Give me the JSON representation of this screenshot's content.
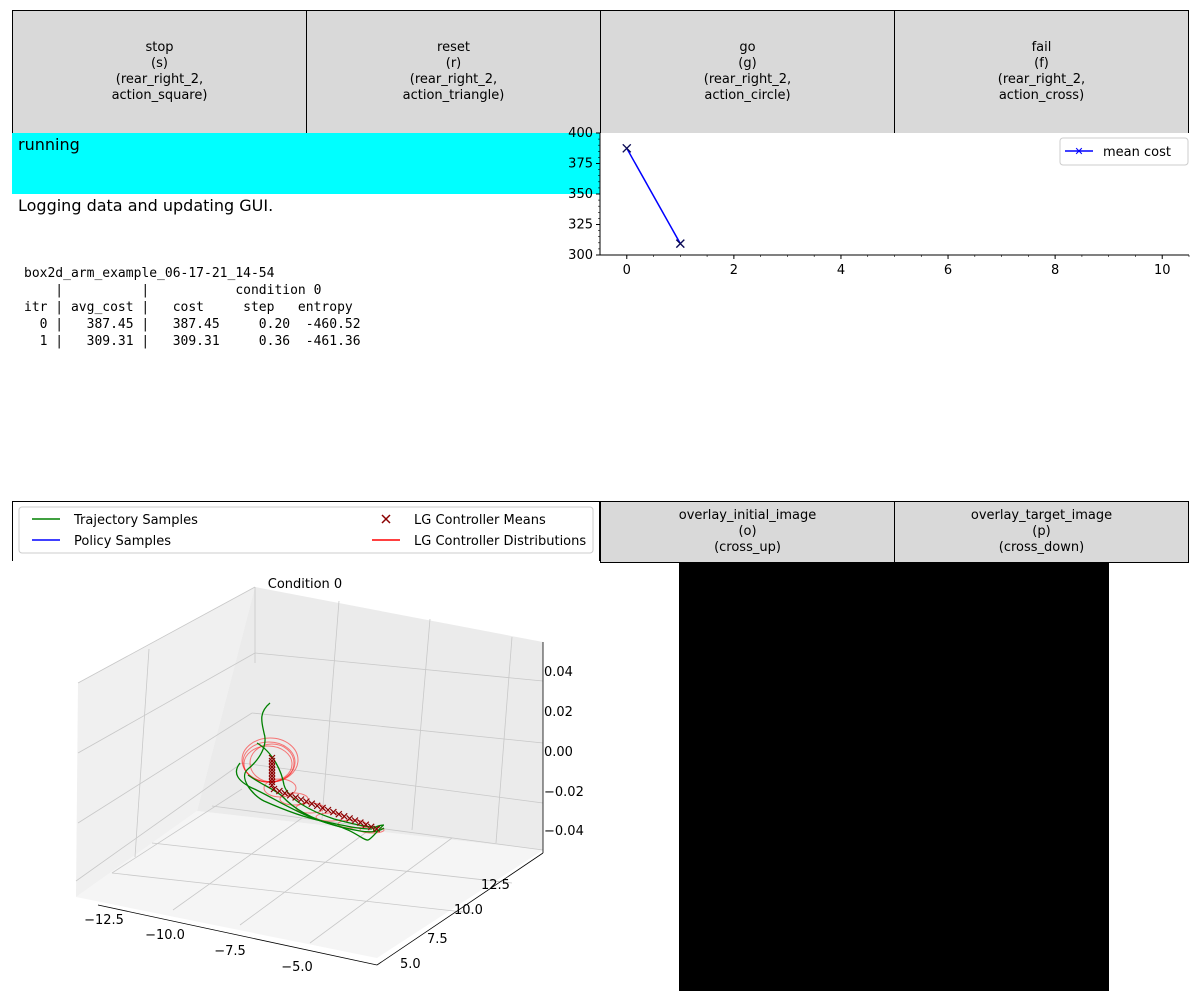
{
  "action_buttons": [
    {
      "label": "stop\n(s)\n(rear_right_2,\naction_square)"
    },
    {
      "label": "reset\n(r)\n(rear_right_2,\naction_triangle)"
    },
    {
      "label": "go\n(g)\n(rear_right_2,\naction_circle)"
    },
    {
      "label": "fail\n(f)\n(rear_right_2,\naction_cross)"
    }
  ],
  "status": {
    "text": "running",
    "color": "#00ffff",
    "message": "Logging data and updating GUI."
  },
  "log": {
    "lines": [
      "box2d_arm_example_06-17-21_14-54",
      "    |          |           condition 0",
      "itr | avg_cost |   cost     step   entropy",
      "  0 |   387.45 |   387.45     0.20  -460.52",
      "  1 |   309.31 |   309.31     0.36  -461.36"
    ]
  },
  "cost_plot": {
    "legend": "mean cost",
    "color": "#0000ff",
    "x_ticks": [
      "0",
      "2",
      "4",
      "6",
      "8",
      "10"
    ],
    "y_ticks": [
      "300",
      "325",
      "350",
      "375",
      "400"
    ]
  },
  "chart_data": {
    "type": "line",
    "series": [
      {
        "name": "mean cost",
        "x": [
          0,
          1
        ],
        "values": [
          387.45,
          309.31
        ]
      }
    ],
    "xlim": [
      -0.5,
      10.5
    ],
    "ylim": [
      300,
      400
    ]
  },
  "trajectory_legend": {
    "items": [
      {
        "label": "Trajectory Samples",
        "color": "#008000",
        "marker": "line"
      },
      {
        "label": "LG Controller Means",
        "color": "#8b0000",
        "marker": "x"
      },
      {
        "label": "Policy Samples",
        "color": "#0000ff",
        "marker": "line"
      },
      {
        "label": "LG Controller Distributions",
        "color": "#ff0000",
        "marker": "line"
      }
    ]
  },
  "plot3d": {
    "title": "Condition 0",
    "x_ticks": [
      "−12.5",
      "−10.0",
      "−7.5",
      "−5.0"
    ],
    "y_ticks": [
      "5.0",
      "7.5",
      "10.0",
      "12.5"
    ],
    "z_ticks": [
      "0.04",
      "0.02",
      "0.00",
      "−0.02",
      "−0.04"
    ]
  },
  "overlay_buttons": [
    {
      "label": "overlay_initial_image\n(o)\n(cross_up)"
    },
    {
      "label": "overlay_target_image\n(p)\n(cross_down)"
    }
  ]
}
